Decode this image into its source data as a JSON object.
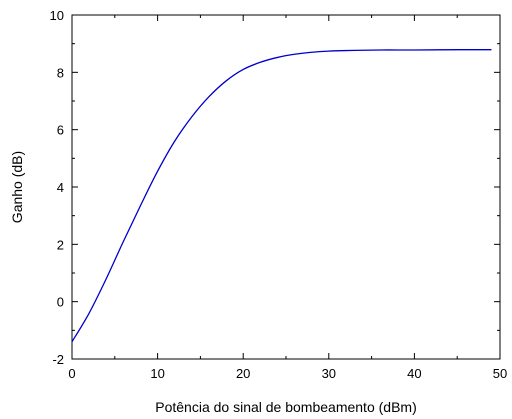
{
  "chart_data": {
    "type": "line",
    "xlabel": "Potência do sinal de bombeamento (dBm)",
    "ylabel": "Ganho (dB)",
    "xlim": [
      0,
      50
    ],
    "ylim": [
      -2,
      10
    ],
    "xticks": [
      0,
      10,
      20,
      30,
      40,
      50
    ],
    "yticks": [
      -2,
      0,
      2,
      4,
      6,
      8,
      10
    ],
    "grid": false,
    "legend": "none",
    "series": [
      {
        "color": "#0000cc",
        "x": [
          0,
          2,
          4,
          6,
          8,
          10,
          12,
          14,
          16,
          18,
          20,
          22,
          24,
          26,
          28,
          30,
          32,
          34,
          36,
          38,
          40,
          45,
          49
        ],
        "y": [
          -1.4,
          -0.4,
          0.8,
          2.1,
          3.35,
          4.55,
          5.6,
          6.45,
          7.15,
          7.7,
          8.1,
          8.35,
          8.52,
          8.63,
          8.7,
          8.74,
          8.76,
          8.77,
          8.78,
          8.78,
          8.78,
          8.79,
          8.79
        ]
      }
    ]
  }
}
